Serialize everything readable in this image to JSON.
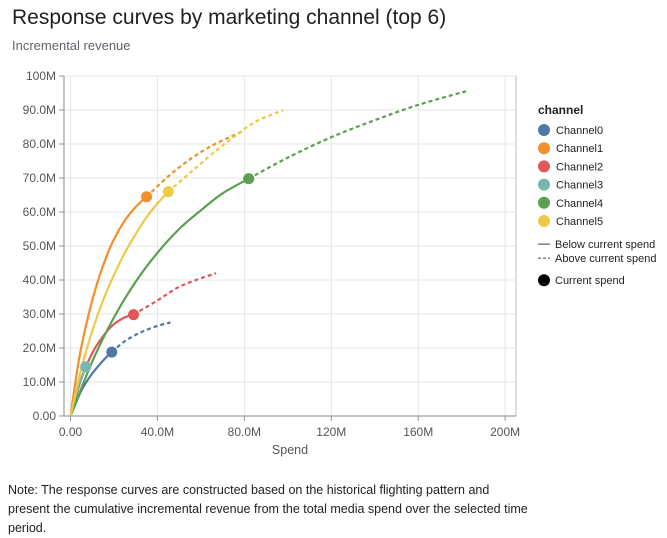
{
  "title": "Response curves by marketing channel (top 6)",
  "subtitle": "Incremental revenue",
  "note": "Note: The response curves are constructed based on the historical flighting pattern and present the cumulative incremental revenue from the total media spend over the selected time period.",
  "chart_data": {
    "type": "line",
    "xlabel": "Spend",
    "ylabel": "",
    "xlim": [
      -3,
      205
    ],
    "ylim": [
      0,
      100
    ],
    "x_ticks": [
      {
        "value": 0,
        "label": "0.00"
      },
      {
        "value": 40,
        "label": "40.0M"
      },
      {
        "value": 80,
        "label": "80.0M"
      },
      {
        "value": 120,
        "label": "120M"
      },
      {
        "value": 160,
        "label": "160M"
      },
      {
        "value": 200,
        "label": "200M"
      }
    ],
    "y_ticks": [
      {
        "value": 0,
        "label": "0.00"
      },
      {
        "value": 10,
        "label": "10.0M"
      },
      {
        "value": 20,
        "label": "20.0M"
      },
      {
        "value": 30,
        "label": "30.0M"
      },
      {
        "value": 40,
        "label": "40.0M"
      },
      {
        "value": 50,
        "label": "50.0M"
      },
      {
        "value": 60,
        "label": "60.0M"
      },
      {
        "value": 70,
        "label": "70.0M"
      },
      {
        "value": 80,
        "label": "80.0M"
      },
      {
        "value": 90,
        "label": "90.0M"
      },
      {
        "value": 100,
        "label": "100M"
      }
    ],
    "grid": true,
    "legend": {
      "title": "channel",
      "position": "right",
      "line_styles": [
        {
          "label": "Below current spend",
          "style": "solid"
        },
        {
          "label": "Above current spend",
          "style": "dashed"
        }
      ],
      "point_label": "Current spend"
    },
    "series": [
      {
        "name": "Channel0",
        "color": "#4e79a7",
        "points": [
          [
            0,
            0
          ],
          [
            5,
            7.5
          ],
          [
            10,
            12.5
          ],
          [
            15,
            16.3
          ],
          [
            19,
            18.8
          ],
          [
            25,
            22
          ],
          [
            32,
            24.5
          ],
          [
            40,
            26.5
          ],
          [
            46,
            27.5
          ]
        ],
        "current": [
          19,
          18.8
        ]
      },
      {
        "name": "Channel1",
        "color": "#f28e2b",
        "points": [
          [
            0,
            0
          ],
          [
            4,
            17
          ],
          [
            8,
            29
          ],
          [
            12,
            38.5
          ],
          [
            16,
            46
          ],
          [
            20,
            52
          ],
          [
            25,
            57.5
          ],
          [
            30,
            61.5
          ],
          [
            35,
            64.5
          ],
          [
            45,
            70.5
          ],
          [
            55,
            75.5
          ],
          [
            65,
            79.5
          ],
          [
            75,
            82.5
          ],
          [
            80,
            84
          ]
        ],
        "current": [
          35,
          64.5
        ]
      },
      {
        "name": "Channel2",
        "color": "#e15759",
        "points": [
          [
            0,
            0
          ],
          [
            5,
            11
          ],
          [
            10,
            18.5
          ],
          [
            15,
            23.5
          ],
          [
            20,
            27
          ],
          [
            25,
            29
          ],
          [
            29,
            29.8
          ],
          [
            40,
            34
          ],
          [
            50,
            38
          ],
          [
            60,
            40.5
          ],
          [
            67,
            42
          ]
        ],
        "current": [
          29,
          29.8
        ]
      },
      {
        "name": "Channel3",
        "color": "#76b7b2",
        "points": [
          [
            0,
            0
          ],
          [
            2,
            5
          ],
          [
            4,
            9.5
          ],
          [
            7,
            14.5
          ]
        ],
        "current": [
          7,
          14.5
        ]
      },
      {
        "name": "Channel4",
        "color": "#59a14f",
        "points": [
          [
            0,
            0
          ],
          [
            10,
            16
          ],
          [
            20,
            29
          ],
          [
            30,
            39.5
          ],
          [
            40,
            48
          ],
          [
            50,
            55
          ],
          [
            60,
            60.5
          ],
          [
            70,
            65.5
          ],
          [
            82,
            69.8
          ],
          [
            100,
            76
          ],
          [
            120,
            82
          ],
          [
            140,
            87
          ],
          [
            160,
            91.5
          ],
          [
            182,
            95.5
          ]
        ],
        "current": [
          82,
          69.8
        ]
      },
      {
        "name": "Channel5",
        "color": "#edc948",
        "points": [
          [
            0,
            0
          ],
          [
            5,
            14
          ],
          [
            10,
            25
          ],
          [
            15,
            34
          ],
          [
            20,
            41.5
          ],
          [
            25,
            48
          ],
          [
            30,
            53.5
          ],
          [
            35,
            58.5
          ],
          [
            40,
            62.5
          ],
          [
            45,
            66
          ],
          [
            55,
            71.5
          ],
          [
            65,
            77
          ],
          [
            75,
            82
          ],
          [
            85,
            86.5
          ],
          [
            98,
            90
          ]
        ],
        "current": [
          45,
          66
        ]
      }
    ]
  }
}
